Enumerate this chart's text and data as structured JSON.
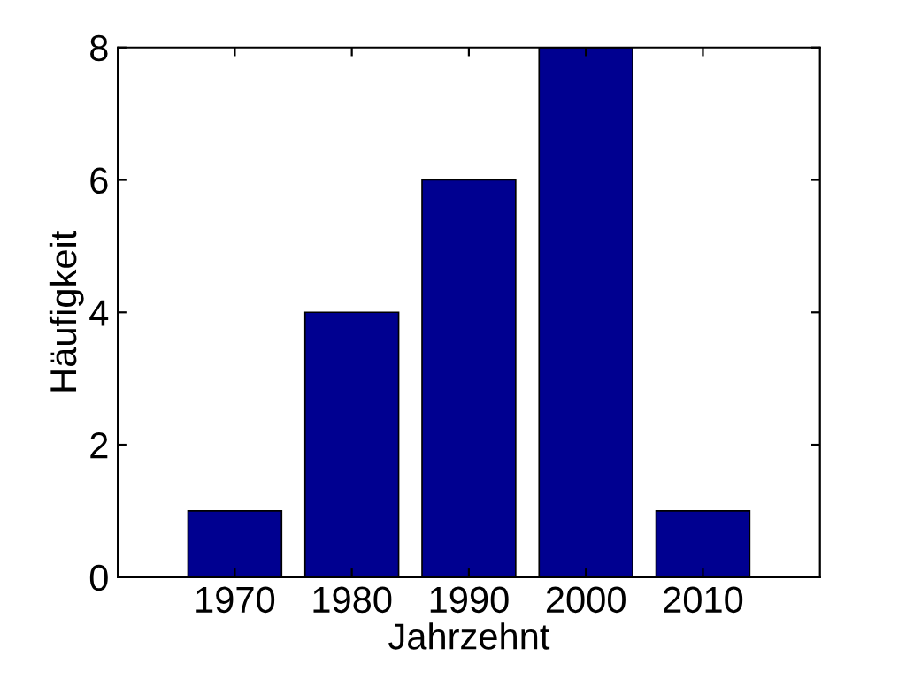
{
  "chart_data": {
    "type": "bar",
    "xlabel": "Jahrzehnt",
    "ylabel": "Häufigkeit",
    "categories": [
      "1970",
      "1980",
      "1990",
      "2000",
      "2010"
    ],
    "values": [
      1,
      4,
      6,
      8,
      1
    ],
    "color": "#000090",
    "ylim": [
      0,
      8
    ],
    "yticks": [
      0,
      2,
      4,
      6,
      8
    ],
    "grid": false
  }
}
